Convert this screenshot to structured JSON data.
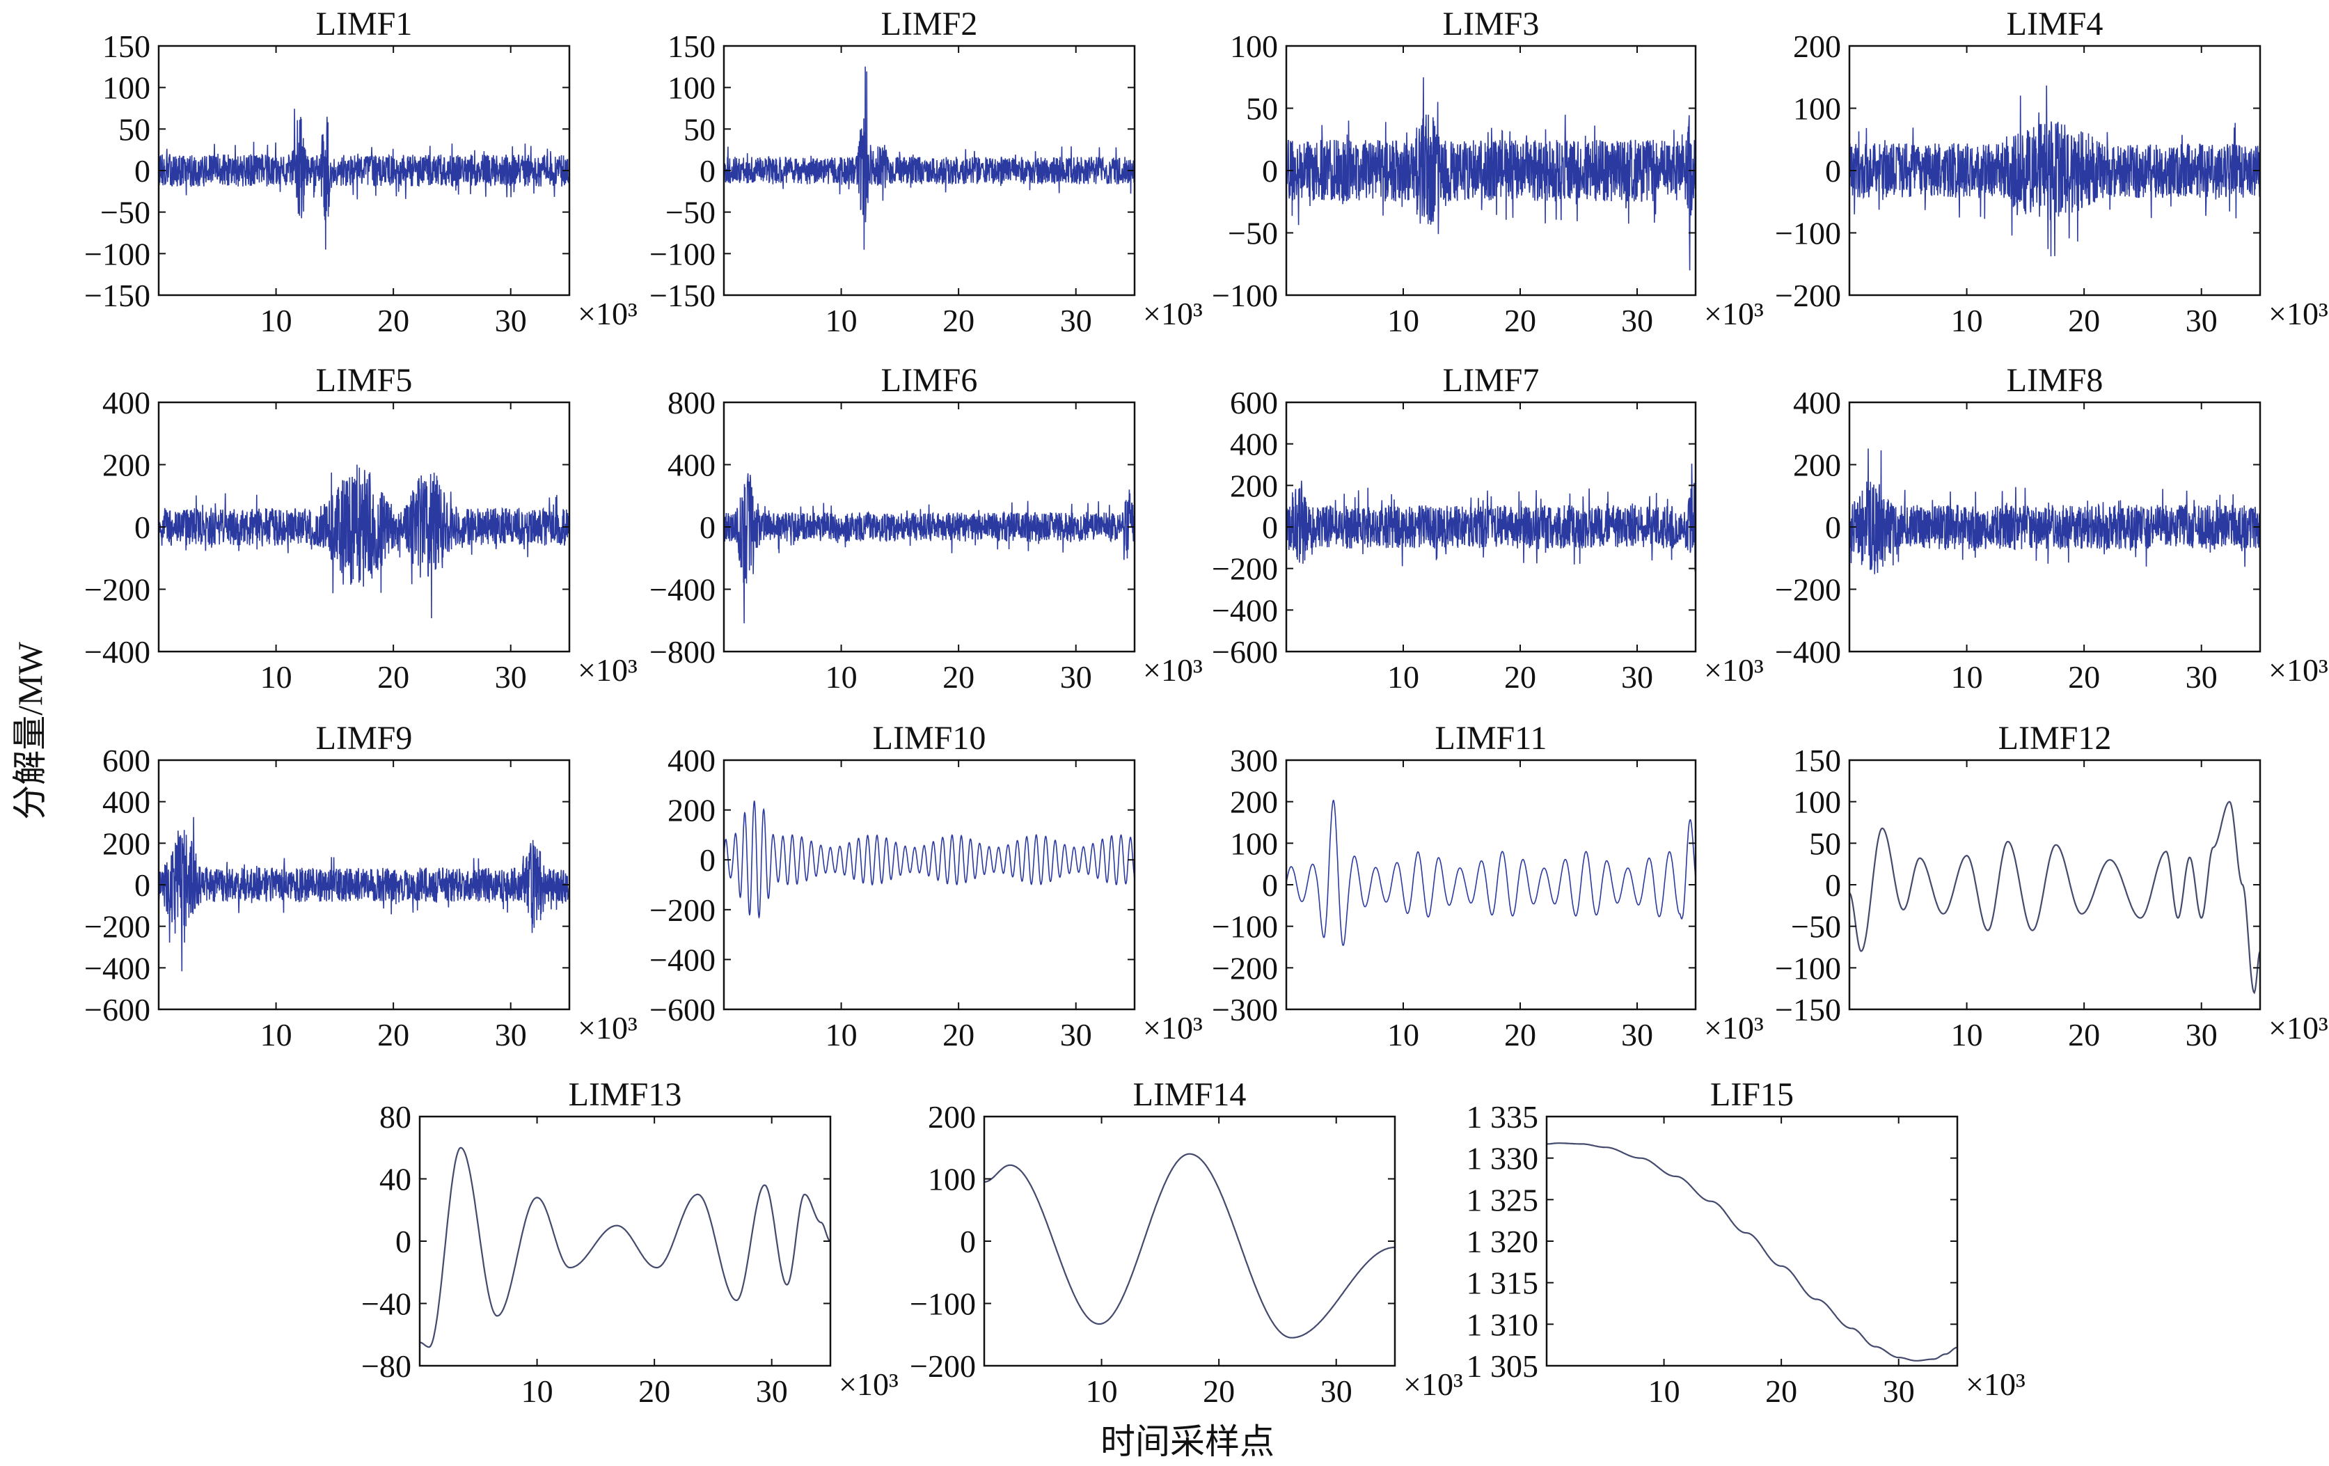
{
  "figure": {
    "ylabel": "分解量/MW",
    "xlabel": "时间采样点"
  },
  "colors": {
    "signal": "#2b3aa0",
    "smooth": "#444a6e",
    "axis": "#111111"
  },
  "chart_data": [
    {
      "type": "line",
      "title": "LIMF1",
      "xlim": [
        0,
        35
      ],
      "x_multiplier": "×10³",
      "xticks": [
        "10",
        "20",
        "30"
      ],
      "ylim": [
        -150,
        150
      ],
      "yticks": [
        "150",
        "100",
        "50",
        "0",
        "−50",
        "−100",
        "−150"
      ],
      "series": [
        {
          "kind": "noise",
          "amp": 35,
          "bursts": [
            [
              12,
              0.6,
              125
            ],
            [
              14.2,
              0.5,
              130
            ]
          ]
        }
      ]
    },
    {
      "type": "line",
      "title": "LIMF2",
      "xlim": [
        0,
        35
      ],
      "x_multiplier": "×10³",
      "xticks": [
        "10",
        "20",
        "30"
      ],
      "ylim": [
        -150,
        150
      ],
      "yticks": [
        "150",
        "100",
        "50",
        "0",
        "−50",
        "−100",
        "−150"
      ],
      "series": [
        {
          "kind": "noise",
          "amp": 30,
          "bursts": [
            [
              12,
              0.6,
              130
            ],
            [
              13.5,
              0.5,
              70
            ]
          ]
        }
      ]
    },
    {
      "type": "line",
      "title": "LIMF3",
      "xlim": [
        0,
        35
      ],
      "x_multiplier": "×10³",
      "xticks": [
        "10",
        "20",
        "30"
      ],
      "ylim": [
        -100,
        100
      ],
      "yticks": [
        "100",
        "50",
        "0",
        "−50",
        "−100"
      ],
      "series": [
        {
          "kind": "noise",
          "amp": 45,
          "bursts": [
            [
              12,
              1.5,
              90
            ],
            [
              34.5,
              0.3,
              90
            ]
          ]
        }
      ]
    },
    {
      "type": "line",
      "title": "LIMF4",
      "xlim": [
        0,
        35
      ],
      "x_multiplier": "×10³",
      "xticks": [
        "10",
        "20",
        "30"
      ],
      "ylim": [
        -200,
        200
      ],
      "yticks": [
        "200",
        "100",
        "0",
        "−100",
        "−200"
      ],
      "series": [
        {
          "kind": "noise",
          "amp": 80,
          "bursts": [
            [
              17,
              6,
              145
            ]
          ]
        }
      ]
    },
    {
      "type": "line",
      "title": "LIMF5",
      "xlim": [
        0,
        35
      ],
      "x_multiplier": "×10³",
      "xticks": [
        "10",
        "20",
        "30"
      ],
      "ylim": [
        -400,
        400
      ],
      "yticks": [
        "400",
        "200",
        "0",
        "−200",
        "−400"
      ],
      "series": [
        {
          "kind": "noise",
          "amp": 110,
          "bursts": [
            [
              17,
              3,
              360
            ],
            [
              23,
              2,
              340
            ]
          ]
        }
      ]
    },
    {
      "type": "line",
      "title": "LIMF6",
      "xlim": [
        0,
        35
      ],
      "x_multiplier": "×10³",
      "xticks": [
        "10",
        "20",
        "30"
      ],
      "ylim": [
        -800,
        800
      ],
      "yticks": [
        "800",
        "400",
        "0",
        "−400",
        "−800"
      ],
      "series": [
        {
          "kind": "noise",
          "amp": 170,
          "bursts": [
            [
              2,
              1,
              720
            ],
            [
              34.5,
              0.5,
              450
            ]
          ]
        }
      ]
    },
    {
      "type": "line",
      "title": "LIMF7",
      "xlim": [
        0,
        35
      ],
      "x_multiplier": "×10³",
      "xticks": [
        "10",
        "20",
        "30"
      ],
      "ylim": [
        -600,
        600
      ],
      "yticks": [
        "600",
        "400",
        "200",
        "0",
        "−200",
        "−400",
        "−600"
      ],
      "series": [
        {
          "kind": "noise",
          "amp": 190,
          "bursts": [
            [
              1,
              1,
              400
            ],
            [
              35,
              0.8,
              450
            ]
          ]
        }
      ]
    },
    {
      "type": "line",
      "title": "LIMF8",
      "xlim": [
        0,
        35
      ],
      "x_multiplier": "×10³",
      "xticks": [
        "10",
        "20",
        "30"
      ],
      "ylim": [
        -400,
        400
      ],
      "yticks": [
        "400",
        "200",
        "0",
        "−200",
        "−400"
      ],
      "series": [
        {
          "kind": "noise",
          "amp": 130,
          "bursts": [
            [
              2,
              2,
              280
            ]
          ]
        }
      ]
    },
    {
      "type": "line",
      "title": "LIMF9",
      "xlim": [
        0,
        35
      ],
      "x_multiplier": "×10³",
      "xticks": [
        "10",
        "20",
        "30"
      ],
      "ylim": [
        -600,
        600
      ],
      "yticks": [
        "600",
        "400",
        "200",
        "0",
        "−200",
        "−400",
        "−600"
      ],
      "series": [
        {
          "kind": "noise",
          "amp": 150,
          "bursts": [
            [
              2,
              1.5,
              520
            ],
            [
              32,
              1,
              400
            ]
          ]
        }
      ]
    },
    {
      "type": "line",
      "title": "LIMF10",
      "xlim": [
        0,
        35
      ],
      "x_multiplier": "×10³",
      "xticks": [
        "10",
        "20",
        "30"
      ],
      "ylim": [
        -600,
        400
      ],
      "yticks": [
        "400",
        "200",
        "0",
        "−200",
        "−400",
        "−600"
      ],
      "series": [
        {
          "kind": "osc",
          "period": 0.8,
          "amp": 100,
          "bursts": [
            [
              2.5,
              1.5,
              460
            ]
          ]
        }
      ]
    },
    {
      "type": "line",
      "title": "LIMF11",
      "xlim": [
        0,
        35
      ],
      "x_multiplier": "×10³",
      "xticks": [
        "10",
        "20",
        "30"
      ],
      "ylim": [
        -300,
        300
      ],
      "yticks": [
        "300",
        "200",
        "100",
        "0",
        "−100",
        "−200",
        "−300"
      ],
      "series": [
        {
          "kind": "osc",
          "period": 1.8,
          "amp": 80,
          "bursts": [
            [
              4,
              1.5,
              210
            ],
            [
              34.5,
              0.8,
              230
            ]
          ]
        }
      ]
    },
    {
      "type": "line",
      "title": "LIMF12",
      "xlim": [
        0,
        35
      ],
      "x_multiplier": "×10³",
      "xticks": [
        "10",
        "20",
        "30"
      ],
      "ylim": [
        -150,
        150
      ],
      "yticks": [
        "150",
        "100",
        "50",
        "0",
        "−50",
        "−100",
        "−150"
      ],
      "series": [
        {
          "kind": "points",
          "x": [
            0,
            1,
            2.8,
            4.6,
            6,
            8,
            10,
            11.8,
            13.5,
            15.6,
            17.6,
            19.8,
            22.2,
            24.8,
            27,
            28,
            29,
            30,
            31,
            32.4,
            33.5,
            34.5,
            35
          ],
          "y": [
            -10,
            -80,
            68,
            -30,
            32,
            -35,
            35,
            -55,
            52,
            -55,
            48,
            -35,
            30,
            -40,
            40,
            -40,
            33,
            -40,
            45,
            100,
            0,
            -130,
            -80
          ]
        }
      ]
    },
    {
      "type": "line",
      "title": "LIMF13",
      "xlim": [
        0,
        35
      ],
      "x_multiplier": "×10³",
      "xticks": [
        "10",
        "20",
        "30"
      ],
      "ylim": [
        -80,
        80
      ],
      "yticks": [
        "80",
        "40",
        "0",
        "−40",
        "−80"
      ],
      "series": [
        {
          "kind": "points",
          "x": [
            0,
            0.8,
            3.5,
            6.6,
            10,
            12.8,
            16.8,
            20.2,
            23.7,
            27,
            29.4,
            31.3,
            32.8,
            34.2,
            35
          ],
          "y": [
            -65,
            -68,
            60,
            -48,
            28,
            -17,
            10,
            -17,
            30,
            -38,
            36,
            -28,
            30,
            12,
            0
          ]
        }
      ]
    },
    {
      "type": "line",
      "title": "LIMF14",
      "xlim": [
        0,
        35
      ],
      "x_multiplier": "×10³",
      "xticks": [
        "10",
        "20",
        "30"
      ],
      "ylim": [
        -200,
        200
      ],
      "yticks": [
        "200",
        "100",
        "0",
        "−100",
        "−200"
      ],
      "series": [
        {
          "kind": "points",
          "x": [
            0,
            2.2,
            9.8,
            17.5,
            26.2,
            35
          ],
          "y": [
            95,
            122,
            -133,
            140,
            -155,
            -10
          ]
        }
      ]
    },
    {
      "type": "line",
      "title": "LIF15",
      "xlim": [
        0,
        35
      ],
      "x_multiplier": "×10³",
      "xticks": [
        "10",
        "20",
        "30"
      ],
      "ylim": [
        1305,
        1335
      ],
      "yticks": [
        "1 335",
        "1 330",
        "1 325",
        "1 320",
        "1 315",
        "1 310",
        "1 305"
      ],
      "series": [
        {
          "kind": "points",
          "x": [
            0,
            1,
            3,
            5,
            8,
            11,
            14,
            17,
            20,
            23,
            26,
            28,
            30,
            31.5,
            33,
            34,
            35
          ],
          "y": [
            1331.7,
            1331.8,
            1331.7,
            1331.3,
            1330,
            1327.8,
            1324.8,
            1321,
            1317,
            1313,
            1309.5,
            1307.3,
            1306,
            1305.6,
            1305.8,
            1306.4,
            1307.2
          ]
        }
      ]
    }
  ]
}
